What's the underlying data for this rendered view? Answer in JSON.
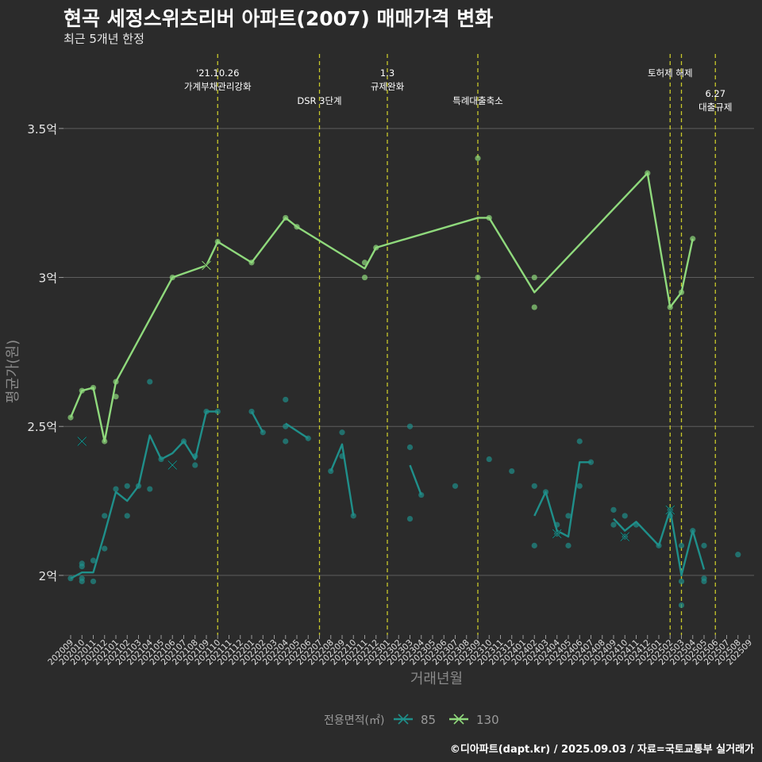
{
  "title": "현곡 세정스위츠리버 아파트(2007) 매매가격 변화",
  "subtitle": "최근 5개년 한정",
  "caption": "©디아파트(dapt.kr) / 2025.09.03 / 자료=국토교통부 실거래가",
  "chart_data": {
    "type": "line",
    "xlabel": "거래년월",
    "ylabel": "평균가(원)",
    "x_range": [
      "202009",
      "202509"
    ],
    "ylim": [
      1.8,
      3.75
    ],
    "yticks": [
      {
        "value": 2.0,
        "label": "2억"
      },
      {
        "value": 2.5,
        "label": "2.5억"
      },
      {
        "value": 3.0,
        "label": "3억"
      },
      {
        "value": 3.5,
        "label": "3.5억"
      }
    ],
    "x_tick_labels": [
      "202009",
      "202010",
      "202011",
      "202012",
      "202101",
      "202102",
      "202103",
      "202104",
      "202105",
      "202106",
      "202107",
      "202108",
      "202109",
      "202110",
      "202111",
      "202112",
      "202201",
      "202202",
      "202203",
      "202204",
      "202205",
      "202206",
      "202207",
      "202208",
      "202209",
      "202210",
      "202211",
      "202212",
      "202301",
      "202302",
      "202303",
      "202304",
      "202305",
      "202306",
      "202307",
      "202308",
      "202309",
      "202310",
      "202311",
      "202312",
      "202401",
      "202402",
      "202403",
      "202404",
      "202405",
      "202406",
      "202407",
      "202408",
      "202409",
      "202410",
      "202411",
      "202412",
      "202501",
      "202502",
      "202503",
      "202504",
      "202505",
      "202506",
      "202507",
      "202508",
      "202509"
    ],
    "legend": {
      "title": "전용면적(㎡)",
      "position": "bottom",
      "entries": [
        "85",
        "130"
      ]
    },
    "grid": true,
    "events": [
      {
        "x": "202110",
        "lines": [
          "'21.10.26",
          "가계부채관리강화"
        ],
        "row": 0
      },
      {
        "x": "202207",
        "lines": [
          "DSR 3단계"
        ],
        "row": 1
      },
      {
        "x": "202301",
        "lines": [
          "1.3",
          "규제완화"
        ],
        "row": 0
      },
      {
        "x": "202309",
        "lines": [
          "특례대출축소"
        ],
        "row": 1
      },
      {
        "x": "202502",
        "lines": [
          "토허제 해제"
        ],
        "row": 0
      },
      {
        "x": "202503",
        "lines": [],
        "row": 0
      },
      {
        "x": "202506",
        "lines": [
          "6.27",
          "대출규제"
        ],
        "row": 2
      }
    ],
    "series": [
      {
        "name": "85",
        "color": "#1f8f8a",
        "line": [
          {
            "x": "202009",
            "y": 1.99
          },
          {
            "x": "202010",
            "y": 2.01
          },
          {
            "x": "202011",
            "y": 2.01
          },
          {
            "x": "202012",
            "y": 2.14
          },
          {
            "x": "202101",
            "y": 2.28
          },
          {
            "x": "202102",
            "y": 2.25
          },
          {
            "x": "202103",
            "y": 2.3
          },
          {
            "x": "202104",
            "y": 2.47
          },
          {
            "x": "202105",
            "y": 2.39
          },
          {
            "x": "202106",
            "y": 2.41
          },
          {
            "x": "202107",
            "y": 2.45
          },
          {
            "x": "202108",
            "y": 2.39
          },
          {
            "x": "202109",
            "y": 2.55
          },
          {
            "x": "202110",
            "y": 2.55
          },
          null,
          {
            "x": "202201",
            "y": 2.55
          },
          {
            "x": "202202",
            "y": 2.48
          },
          null,
          {
            "x": "202204",
            "y": 2.51
          },
          {
            "x": "202206",
            "y": 2.46
          },
          null,
          {
            "x": "202208",
            "y": 2.35
          },
          {
            "x": "202209",
            "y": 2.44
          },
          {
            "x": "202210",
            "y": 2.2
          },
          null,
          {
            "x": "202303",
            "y": 2.37
          },
          {
            "x": "202304",
            "y": 2.27
          },
          null,
          {
            "x": "202402",
            "y": 2.2
          },
          {
            "x": "202403",
            "y": 2.28
          },
          {
            "x": "202404",
            "y": 2.15
          },
          {
            "x": "202405",
            "y": 2.13
          },
          {
            "x": "202406",
            "y": 2.38
          },
          {
            "x": "202407",
            "y": 2.38
          },
          null,
          {
            "x": "202409",
            "y": 2.19
          },
          {
            "x": "202410",
            "y": 2.15
          },
          {
            "x": "202411",
            "y": 2.18
          },
          {
            "x": "202501",
            "y": 2.1
          },
          {
            "x": "202502",
            "y": 2.22
          },
          {
            "x": "202503",
            "y": 2.0
          },
          {
            "x": "202504",
            "y": 2.15
          },
          {
            "x": "202505",
            "y": 2.02
          }
        ],
        "points": [
          {
            "x": "202009",
            "y": 1.99
          },
          {
            "x": "202010",
            "y": 2.04
          },
          {
            "x": "202010",
            "y": 2.03
          },
          {
            "x": "202010",
            "y": 1.99
          },
          {
            "x": "202010",
            "y": 1.98
          },
          {
            "x": "202011",
            "y": 2.05
          },
          {
            "x": "202011",
            "y": 1.98
          },
          {
            "x": "202012",
            "y": 2.2
          },
          {
            "x": "202012",
            "y": 2.09
          },
          {
            "x": "202101",
            "y": 2.29
          },
          {
            "x": "202102",
            "y": 2.3
          },
          {
            "x": "202102",
            "y": 2.2
          },
          {
            "x": "202103",
            "y": 2.3
          },
          {
            "x": "202104",
            "y": 2.65
          },
          {
            "x": "202104",
            "y": 2.29
          },
          {
            "x": "202105",
            "y": 2.39
          },
          {
            "x": "202107",
            "y": 2.45
          },
          {
            "x": "202108",
            "y": 2.4
          },
          {
            "x": "202108",
            "y": 2.37
          },
          {
            "x": "202109",
            "y": 2.55
          },
          {
            "x": "202110",
            "y": 2.55
          },
          {
            "x": "202201",
            "y": 2.55
          },
          {
            "x": "202202",
            "y": 2.48
          },
          {
            "x": "202204",
            "y": 2.59
          },
          {
            "x": "202204",
            "y": 2.5
          },
          {
            "x": "202204",
            "y": 2.45
          },
          {
            "x": "202206",
            "y": 2.46
          },
          {
            "x": "202208",
            "y": 2.35
          },
          {
            "x": "202209",
            "y": 2.48
          },
          {
            "x": "202209",
            "y": 2.4
          },
          {
            "x": "202210",
            "y": 2.2
          },
          {
            "x": "202303",
            "y": 2.5
          },
          {
            "x": "202303",
            "y": 2.43
          },
          {
            "x": "202303",
            "y": 2.19
          },
          {
            "x": "202304",
            "y": 2.27
          },
          {
            "x": "202307",
            "y": 2.3
          },
          {
            "x": "202310",
            "y": 2.39
          },
          {
            "x": "202312",
            "y": 2.35
          },
          {
            "x": "202402",
            "y": 2.3
          },
          {
            "x": "202402",
            "y": 2.1
          },
          {
            "x": "202403",
            "y": 2.28
          },
          {
            "x": "202404",
            "y": 2.17
          },
          {
            "x": "202404",
            "y": 2.14
          },
          {
            "x": "202405",
            "y": 2.2
          },
          {
            "x": "202405",
            "y": 2.1
          },
          {
            "x": "202406",
            "y": 2.45
          },
          {
            "x": "202406",
            "y": 2.3
          },
          {
            "x": "202407",
            "y": 2.38
          },
          {
            "x": "202409",
            "y": 2.22
          },
          {
            "x": "202409",
            "y": 2.17
          },
          {
            "x": "202410",
            "y": 2.2
          },
          {
            "x": "202410",
            "y": 2.13
          },
          {
            "x": "202411",
            "y": 2.17
          },
          {
            "x": "202501",
            "y": 2.1
          },
          {
            "x": "202502",
            "y": 2.22
          },
          {
            "x": "202502",
            "y": 2.2
          },
          {
            "x": "202503",
            "y": 2.1
          },
          {
            "x": "202503",
            "y": 1.98
          },
          {
            "x": "202503",
            "y": 1.9
          },
          {
            "x": "202504",
            "y": 2.15
          },
          {
            "x": "202505",
            "y": 2.1
          },
          {
            "x": "202505",
            "y": 1.99
          },
          {
            "x": "202505",
            "y": 1.98
          },
          {
            "x": "202508",
            "y": 2.07
          }
        ],
        "crosses": [
          {
            "x": "202010",
            "y": 2.45
          },
          {
            "x": "202106",
            "y": 2.37
          },
          {
            "x": "202404",
            "y": 2.14
          },
          {
            "x": "202410",
            "y": 2.13
          },
          {
            "x": "202502",
            "y": 2.22
          }
        ]
      },
      {
        "name": "130",
        "color": "#8fd97c",
        "line": [
          {
            "x": "202009",
            "y": 2.53
          },
          {
            "x": "202010",
            "y": 2.62
          },
          {
            "x": "202011",
            "y": 2.63
          },
          {
            "x": "202012",
            "y": 2.45
          },
          {
            "x": "202101",
            "y": 2.65
          },
          {
            "x": "202106",
            "y": 3.0
          },
          {
            "x": "202109",
            "y": 3.04
          },
          {
            "x": "202110",
            "y": 3.12
          },
          {
            "x": "202201",
            "y": 3.05
          },
          {
            "x": "202204",
            "y": 3.2
          },
          {
            "x": "202205",
            "y": 3.17
          },
          {
            "x": "202211",
            "y": 3.03
          },
          {
            "x": "202212",
            "y": 3.1
          },
          {
            "x": "202309",
            "y": 3.2
          },
          {
            "x": "202310",
            "y": 3.2
          },
          {
            "x": "202402",
            "y": 2.95
          },
          {
            "x": "202412",
            "y": 3.35
          },
          {
            "x": "202502",
            "y": 2.9
          },
          {
            "x": "202503",
            "y": 2.95
          },
          {
            "x": "202504",
            "y": 3.13
          }
        ],
        "points": [
          {
            "x": "202009",
            "y": 2.53
          },
          {
            "x": "202010",
            "y": 2.62
          },
          {
            "x": "202011",
            "y": 2.63
          },
          {
            "x": "202012",
            "y": 2.45
          },
          {
            "x": "202101",
            "y": 2.65
          },
          {
            "x": "202101",
            "y": 2.6
          },
          {
            "x": "202106",
            "y": 3.0
          },
          {
            "x": "202110",
            "y": 3.12
          },
          {
            "x": "202201",
            "y": 3.05
          },
          {
            "x": "202204",
            "y": 3.2
          },
          {
            "x": "202205",
            "y": 3.17
          },
          {
            "x": "202211",
            "y": 3.05
          },
          {
            "x": "202211",
            "y": 3.0
          },
          {
            "x": "202212",
            "y": 3.1
          },
          {
            "x": "202309",
            "y": 3.4
          },
          {
            "x": "202309",
            "y": 3.0
          },
          {
            "x": "202310",
            "y": 3.2
          },
          {
            "x": "202402",
            "y": 3.0
          },
          {
            "x": "202402",
            "y": 2.9
          },
          {
            "x": "202412",
            "y": 3.35
          },
          {
            "x": "202502",
            "y": 2.9
          },
          {
            "x": "202503",
            "y": 2.95
          },
          {
            "x": "202504",
            "y": 3.13
          }
        ],
        "crosses": [
          {
            "x": "202109",
            "y": 3.04
          }
        ]
      }
    ]
  }
}
